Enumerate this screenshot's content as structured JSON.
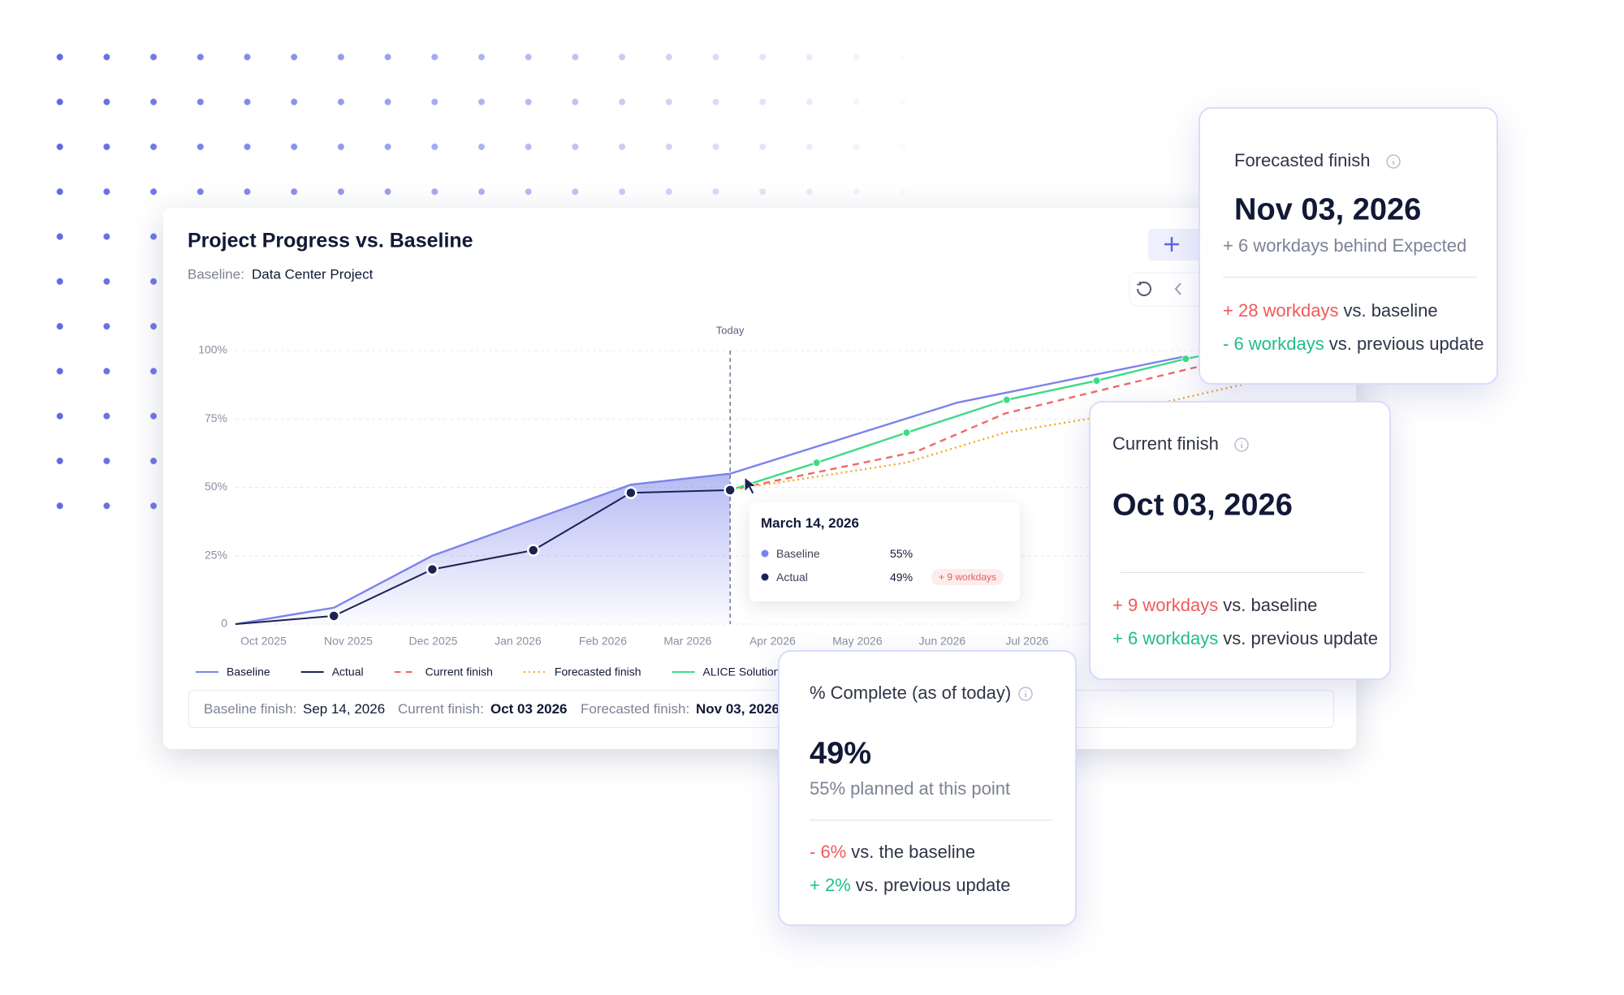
{
  "chart_data": {
    "type": "line",
    "title": "Project Progress vs. Baseline",
    "baseline_label": "Baseline:",
    "baseline_name": "Data Center Project",
    "today_label": "Today",
    "xlim": [
      -0.33,
      12.6
    ],
    "xticks": [
      {
        "value": 0,
        "label": "Oct 2025"
      },
      {
        "value": 1,
        "label": "Nov 2025"
      },
      {
        "value": 2,
        "label": "Dec 2025"
      },
      {
        "value": 3,
        "label": "Jan 2026"
      },
      {
        "value": 4,
        "label": "Feb 2026"
      },
      {
        "value": 5,
        "label": "Mar 2026"
      },
      {
        "value": 6,
        "label": "Apr 2026"
      },
      {
        "value": 7,
        "label": "May 2026"
      },
      {
        "value": 8,
        "label": "Jun 2026"
      },
      {
        "value": 9,
        "label": "Jul 2026"
      }
    ],
    "ylim": [
      0,
      100
    ],
    "yticks": [
      0,
      {
        "value": 25,
        "label": "25%"
      },
      {
        "value": 50,
        "label": "50%"
      },
      {
        "value": 75,
        "label": "75%"
      },
      {
        "value": 100,
        "label": "100%"
      }
    ],
    "grid": true,
    "series": [
      {
        "name": "Baseline",
        "color": "#7b83eb",
        "style": "solid",
        "markers": false,
        "area": true,
        "x": [
          -0.33,
          0.83,
          1.99,
          4.33,
          5.5,
          8.18,
          10.88
        ],
        "values": [
          0,
          6,
          25,
          51,
          55,
          81,
          98
        ]
      },
      {
        "name": "Actual",
        "color": "#1b2352",
        "style": "solid",
        "markers": true,
        "x": [
          -0.33,
          0.83,
          1.99,
          3.18,
          4.33,
          5.5
        ],
        "values": [
          0,
          3,
          20,
          27,
          48,
          49
        ]
      },
      {
        "name": "Current finish",
        "color": "#ef6a6a",
        "style": "dashed",
        "markers": false,
        "x": [
          5.5,
          7.69,
          8.74,
          11.0
        ],
        "values": [
          49,
          63,
          77,
          94
        ]
      },
      {
        "name": "Forecasted finish",
        "color": "#f5a623",
        "style": "dotted",
        "markers": false,
        "x": [
          5.5,
          7.57,
          8.74,
          9.9,
          11.74
        ],
        "values": [
          49,
          59,
          70,
          76,
          89
        ]
      },
      {
        "name": "ALICE Solution 7",
        "color": "#3ddc84",
        "style": "solid",
        "markers": true,
        "x": [
          5.5,
          6.52,
          7.58,
          8.76,
          9.82,
          10.87,
          11.2
        ],
        "values": [
          49,
          59,
          70,
          82,
          89,
          97,
          99
        ]
      }
    ]
  },
  "tooltip": {
    "title": "March 14, 2026",
    "rows": [
      {
        "name": "Baseline",
        "value": "55%"
      },
      {
        "name": "Actual",
        "value": "49%",
        "badge": "+ 9 workdays"
      }
    ]
  },
  "footer": [
    {
      "label": "Baseline finish:",
      "value": "Sep 14, 2026"
    },
    {
      "label": "Current finish:",
      "value": "Oct 03 2026"
    },
    {
      "label": "Forecasted finish:",
      "value": "Nov 03, 2026"
    }
  ],
  "cards": {
    "forecasted": {
      "title": "Forecasted finish",
      "value": "Nov 03, 2026",
      "subtitle": "+ 6 workdays behind Expected",
      "lines": [
        {
          "delta": "+ 28 workdays",
          "color": "#ef5a5a",
          "text": "vs. baseline"
        },
        {
          "delta": "- 6 workdays",
          "color": "#1fbf86",
          "text": "vs. previous update"
        }
      ]
    },
    "current": {
      "title": "Current finish",
      "value": "Oct 03, 2026",
      "lines": [
        {
          "delta": "+ 9 workdays",
          "color": "#ef5a5a",
          "text": "vs. baseline"
        },
        {
          "delta": "+ 6 workdays",
          "color": "#1fbf86",
          "text": "vs. previous update"
        }
      ]
    },
    "complete": {
      "title": "% Complete (as of today)",
      "value": "49%",
      "subtitle": "55% planned at this point",
      "lines": [
        {
          "delta": "- 6%",
          "color": "#ef5a5a",
          "text": "vs. the baseline"
        },
        {
          "delta": "+ 2%",
          "color": "#1fbf86",
          "text": "vs. previous update"
        }
      ]
    }
  }
}
